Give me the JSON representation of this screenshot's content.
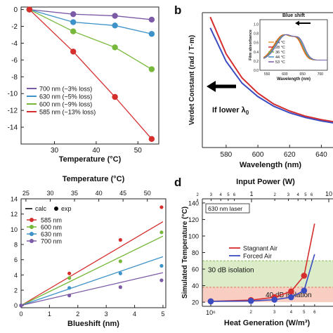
{
  "chart_data": [
    {
      "id": "a",
      "type": "line",
      "panel_label": "",
      "xlabel": "Temperature (°C)",
      "ylabel": "",
      "xlim": [
        22,
        55
      ],
      "ylim": [
        -16,
        0.3
      ],
      "xticks": [
        30,
        40,
        50
      ],
      "yticks": [
        0,
        -2,
        -4,
        -6,
        -8,
        -10,
        -12,
        -14
      ],
      "series": [
        {
          "name": "700 nm (~3% loss)",
          "color": "#7b5aa6",
          "x": [
            24,
            34.5,
            44.5,
            53.3
          ],
          "y": [
            0,
            -0.55,
            -0.75,
            -1.2
          ]
        },
        {
          "name": "630 nm (~5% loss)",
          "color": "#3d93c9",
          "x": [
            24,
            34.5,
            44.5,
            53.3
          ],
          "y": [
            0,
            -1.5,
            -1.9,
            -2.9
          ]
        },
        {
          "name": "600 nm (~9% loss)",
          "color": "#77b83a",
          "x": [
            24,
            34.5,
            44.5,
            53.3
          ],
          "y": [
            0,
            -2.6,
            -4.5,
            -7.1
          ]
        },
        {
          "name": "585 nm (~13% loss)",
          "color": "#d62d2d",
          "x": [
            24,
            34.5,
            44.5,
            53.3
          ],
          "y": [
            0,
            -5.0,
            -10.4,
            -15.4
          ]
        }
      ]
    },
    {
      "id": "b",
      "type": "line",
      "panel_label": "b",
      "xlabel": "Wavelength (nm)",
      "ylabel": "Verdet Constant (rad / T·m)",
      "xlim": [
        565,
        650
      ],
      "xticks": [
        580,
        600,
        620,
        640
      ],
      "annotation": "If lower λ",
      "annotation_sub": "0",
      "series": [
        {
          "name": "red curve",
          "color": "#d62d2d",
          "x": [
            570,
            580,
            590,
            600,
            610,
            620,
            630,
            640,
            650
          ],
          "y": [
            300,
            215,
            160,
            125,
            100,
            84,
            72,
            64,
            58
          ]
        },
        {
          "name": "blue curve",
          "color": "#3b4cc0",
          "x": [
            570,
            580,
            590,
            600,
            610,
            620,
            630,
            640,
            650
          ],
          "y": [
            275,
            198,
            148,
            117,
            95,
            80,
            69,
            61,
            55
          ]
        }
      ],
      "inset": {
        "xlabel": "Wavelength (nm)",
        "ylabel": "Film absorbance",
        "title": "Blue shift",
        "xticks": [
          550,
          600,
          650,
          700
        ],
        "yticks": [
          "0.0",
          "0.2",
          "0.4",
          "0.6",
          "0.8",
          "1.0"
        ],
        "legend": [
          {
            "label": "24 °C",
            "color": "#e8962f"
          },
          {
            "label": "28 °C",
            "color": "#d62d2d"
          },
          {
            "label": "36 °C",
            "color": "#77b83a"
          },
          {
            "label": "44 °C",
            "color": "#3d93c9"
          },
          {
            "label": "53 °C",
            "color": "#7b5aa6"
          }
        ]
      }
    },
    {
      "id": "c",
      "type": "scatter",
      "panel_label": "",
      "xlabel": "Blueshift (nm)",
      "ylabel": "",
      "top_xlabel": "Temperature (°C)",
      "xlim": [
        0,
        5.1
      ],
      "ylim": [
        -0.3,
        14
      ],
      "xticks": [
        0,
        1,
        2,
        3,
        4,
        5
      ],
      "yticks": [
        0,
        2,
        4,
        6,
        8,
        10,
        12,
        14
      ],
      "top_xticks": [
        25,
        30,
        35,
        40,
        45,
        50
      ],
      "legend_calc": "calc",
      "legend_exp": "exp",
      "series": [
        {
          "name": "585 nm",
          "color": "#d62d2d",
          "x": [
            0,
            1.7,
            3.5,
            4.95
          ],
          "y": [
            0,
            4.2,
            8.6,
            12.9
          ],
          "fit": [
            0,
            11
          ]
        },
        {
          "name": "600 nm",
          "color": "#77b83a",
          "x": [
            0,
            1.7,
            3.5,
            4.95
          ],
          "y": [
            0,
            3.6,
            5.8,
            9.6
          ],
          "fit": [
            0,
            9.1
          ]
        },
        {
          "name": "630 nm",
          "color": "#3d93c9",
          "x": [
            0,
            1.7,
            3.5,
            4.95
          ],
          "y": [
            0,
            2.3,
            4.2,
            5.2
          ],
          "fit": [
            0,
            6.4
          ]
        },
        {
          "name": "700 nm",
          "color": "#7b5aa6",
          "x": [
            0,
            1.7,
            3.5,
            4.95
          ],
          "y": [
            0,
            1.3,
            2.4,
            3.3
          ],
          "fit": [
            0,
            4.3
          ]
        }
      ]
    },
    {
      "id": "d",
      "type": "line",
      "panel_label": "d",
      "xlabel": "Heat Generation (W/m³)",
      "ylabel": "Simulated Temperature (°C)",
      "top_xlabel": "Input Power (W)",
      "ylim": [
        15,
        145
      ],
      "yticks": [
        20,
        40,
        60,
        80,
        100,
        120,
        140
      ],
      "xticks": [
        "10⁶",
        "10⁷"
      ],
      "minor_xticks": [
        "2",
        "3",
        "4",
        "5",
        "6"
      ],
      "top_xticks": [
        "1",
        "10"
      ],
      "top_minor_xticks": [
        "2",
        "3",
        "4",
        "5",
        "6"
      ],
      "laser_label": "630 nm laser",
      "band_30db": {
        "label": "30 dB isolation",
        "range": [
          38,
          70
        ],
        "color": "#c5e0a5"
      },
      "band_40db": {
        "label": "40 dB isolation",
        "range": [
          20,
          38
        ],
        "color": "#f5b8a8"
      },
      "series": [
        {
          "name": "Stagnant Air",
          "color": "#d62d2d",
          "x": [
            1.0,
            2.0,
            3.0,
            4.0,
            5.0,
            6.0
          ],
          "y": [
            21,
            22.5,
            26,
            33,
            52,
            115
          ]
        },
        {
          "name": "Forced Air",
          "color": "#3b4cc0",
          "x": [
            1.0,
            2.0,
            3.0,
            4.0,
            5.0,
            6.0
          ],
          "y": [
            21,
            21.5,
            23,
            26,
            34,
            78
          ]
        }
      ]
    }
  ]
}
